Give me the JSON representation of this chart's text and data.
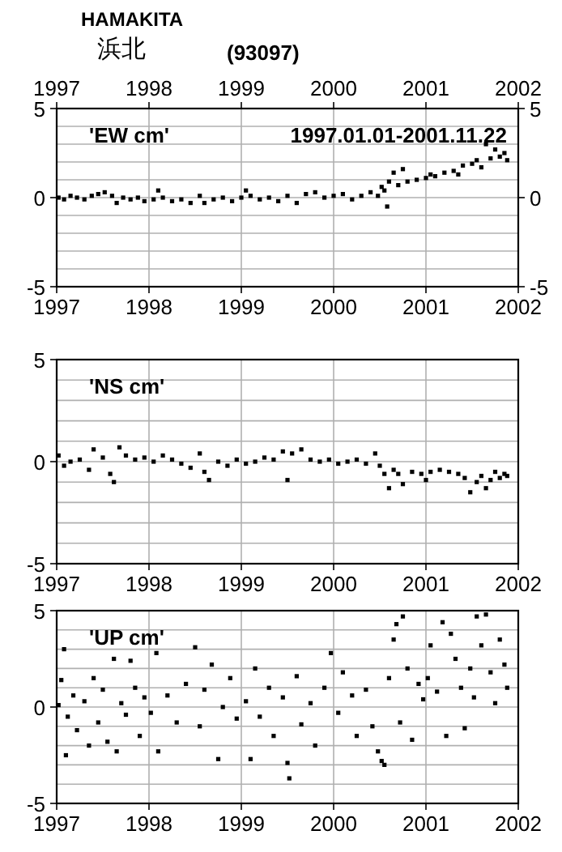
{
  "chart_data": [
    {
      "type": "scatter",
      "title": "HAMAKITA",
      "subtitle": "浜北",
      "annotations": [
        "(93097)",
        "'EW cm'",
        "1997.01.01-2001.11.22"
      ],
      "marker": "square",
      "grid": true,
      "xlim": [
        1997,
        2002
      ],
      "xticks": [
        1997,
        1998,
        1999,
        2000,
        2001,
        2002
      ],
      "x2lim": [
        1997,
        2002
      ],
      "x2ticks": [
        1997,
        1998,
        1999,
        2000,
        2001,
        2002
      ],
      "ylim": [
        -5,
        5
      ],
      "yticks": [
        -5,
        {
          "value": -4,
          "label": null
        },
        {
          "value": -3,
          "label": null
        },
        {
          "value": -2,
          "label": null
        },
        {
          "value": -1,
          "label": null
        },
        0,
        {
          "value": 1,
          "label": null
        },
        {
          "value": 2,
          "label": null
        },
        {
          "value": 3,
          "label": null
        },
        {
          "value": 4,
          "label": null
        },
        5
      ],
      "y2lim": [
        -5,
        5
      ],
      "y2ticks": [
        -5,
        0,
        5
      ],
      "series": [
        {
          "color": "#000000",
          "x": [
            1997.02,
            1997.08,
            1997.15,
            1997.22,
            1997.3,
            1997.38,
            1997.45,
            1997.52,
            1997.6,
            1997.65,
            1997.72,
            1997.8,
            1997.88,
            1997.95,
            1998.05,
            1998.1,
            1998.15,
            1998.25,
            1998.35,
            1998.45,
            1998.55,
            1998.6,
            1998.7,
            1998.8,
            1998.9,
            1999.0,
            1999.05,
            1999.1,
            1999.2,
            1999.3,
            1999.4,
            1999.5,
            1999.6,
            1999.7,
            1999.8,
            1999.9,
            2000.0,
            2000.1,
            2000.2,
            2000.3,
            2000.4,
            2000.48,
            2000.52,
            2000.55,
            2000.58,
            2000.6,
            2000.65,
            2000.7,
            2000.75,
            2000.8,
            2000.9,
            2001.0,
            2001.05,
            2001.1,
            2001.2,
            2001.3,
            2001.35,
            2001.4,
            2001.5,
            2001.55,
            2001.6,
            2001.65,
            2001.7,
            2001.75,
            2001.8,
            2001.85,
            2001.88
          ],
          "values": [
            0.0,
            -0.1,
            0.1,
            0.0,
            -0.1,
            0.1,
            0.2,
            0.3,
            0.1,
            -0.3,
            0.0,
            -0.1,
            0.0,
            -0.2,
            -0.1,
            0.4,
            0.0,
            -0.2,
            -0.1,
            -0.3,
            0.1,
            -0.3,
            -0.1,
            0.0,
            -0.2,
            0.0,
            0.4,
            0.1,
            -0.1,
            0.0,
            -0.2,
            0.1,
            -0.3,
            0.2,
            0.3,
            0.0,
            0.1,
            0.2,
            -0.1,
            0.1,
            0.3,
            0.1,
            0.6,
            0.4,
            -0.5,
            0.9,
            1.4,
            0.7,
            1.6,
            0.9,
            1.0,
            1.1,
            1.3,
            1.2,
            1.4,
            1.5,
            1.3,
            1.8,
            1.9,
            2.1,
            1.7,
            3.0,
            2.2,
            2.7,
            2.3,
            2.5,
            2.1
          ]
        }
      ]
    },
    {
      "type": "scatter",
      "annotations": [
        "'NS cm'"
      ],
      "marker": "square",
      "grid": true,
      "xlim": [
        1997,
        2002
      ],
      "xticks": [
        1997,
        1998,
        1999,
        2000,
        2001,
        2002
      ],
      "ylim": [
        -5,
        5
      ],
      "yticks": [
        -5,
        {
          "value": -4,
          "label": null
        },
        {
          "value": -3,
          "label": null
        },
        {
          "value": -2,
          "label": null
        },
        {
          "value": -1,
          "label": null
        },
        0,
        {
          "value": 1,
          "label": null
        },
        {
          "value": 2,
          "label": null
        },
        {
          "value": 3,
          "label": null
        },
        {
          "value": 4,
          "label": null
        },
        5
      ],
      "series": [
        {
          "color": "#000000",
          "x": [
            1997.02,
            1997.08,
            1997.15,
            1997.25,
            1997.35,
            1997.4,
            1997.5,
            1997.58,
            1997.62,
            1997.68,
            1997.75,
            1997.85,
            1997.95,
            1998.05,
            1998.15,
            1998.25,
            1998.35,
            1998.45,
            1998.55,
            1998.6,
            1998.65,
            1998.75,
            1998.85,
            1998.95,
            1999.05,
            1999.15,
            1999.25,
            1999.35,
            1999.45,
            1999.5,
            1999.55,
            1999.65,
            1999.75,
            1999.85,
            1999.95,
            2000.05,
            2000.15,
            2000.25,
            2000.35,
            2000.45,
            2000.5,
            2000.55,
            2000.6,
            2000.65,
            2000.7,
            2000.75,
            2000.85,
            2000.95,
            2001.0,
            2001.05,
            2001.15,
            2001.25,
            2001.35,
            2001.42,
            2001.48,
            2001.55,
            2001.6,
            2001.65,
            2001.7,
            2001.75,
            2001.8,
            2001.85,
            2001.88
          ],
          "values": [
            0.3,
            -0.2,
            0.0,
            0.1,
            -0.4,
            0.6,
            0.2,
            -0.6,
            -1.0,
            0.7,
            0.3,
            0.1,
            0.2,
            0.0,
            0.3,
            0.1,
            -0.1,
            -0.3,
            0.4,
            -0.5,
            -0.9,
            0.0,
            -0.2,
            0.1,
            -0.1,
            0.0,
            0.2,
            0.1,
            0.5,
            -0.9,
            0.4,
            0.6,
            0.1,
            0.0,
            0.1,
            -0.1,
            0.0,
            0.1,
            -0.1,
            0.4,
            -0.2,
            -0.6,
            -1.3,
            -0.4,
            -0.6,
            -1.1,
            -0.5,
            -0.6,
            -0.9,
            -0.5,
            -0.4,
            -0.5,
            -0.6,
            -0.8,
            -1.5,
            -1.0,
            -0.7,
            -1.3,
            -0.9,
            -0.5,
            -0.8,
            -0.6,
            -0.7
          ]
        }
      ]
    },
    {
      "type": "scatter",
      "annotations": [
        "'UP cm'"
      ],
      "marker": "square",
      "grid": true,
      "xlim": [
        1997,
        2002
      ],
      "xticks": [
        1997,
        1998,
        1999,
        2000,
        2001,
        2002
      ],
      "ylim": [
        -5,
        5
      ],
      "yticks": [
        -5,
        {
          "value": -4,
          "label": null
        },
        {
          "value": -3,
          "label": null
        },
        {
          "value": -2,
          "label": null
        },
        {
          "value": -1,
          "label": null
        },
        0,
        {
          "value": 1,
          "label": null
        },
        {
          "value": 2,
          "label": null
        },
        {
          "value": 3,
          "label": null
        },
        {
          "value": 4,
          "label": null
        },
        5
      ],
      "series": [
        {
          "color": "#000000",
          "x": [
            1997.02,
            1997.05,
            1997.08,
            1997.1,
            1997.12,
            1997.18,
            1997.22,
            1997.3,
            1997.35,
            1997.4,
            1997.45,
            1997.5,
            1997.55,
            1997.62,
            1997.65,
            1997.7,
            1997.75,
            1997.8,
            1997.85,
            1997.9,
            1997.95,
            1998.02,
            1998.08,
            1998.1,
            1998.2,
            1998.3,
            1998.4,
            1998.5,
            1998.55,
            1998.6,
            1998.68,
            1998.75,
            1998.8,
            1998.88,
            1998.95,
            1999.05,
            1999.1,
            1999.15,
            1999.2,
            1999.3,
            1999.35,
            1999.45,
            1999.5,
            1999.52,
            1999.6,
            1999.65,
            1999.75,
            1999.8,
            1999.9,
            1999.97,
            2000.05,
            2000.1,
            2000.2,
            2000.25,
            2000.35,
            2000.42,
            2000.48,
            2000.52,
            2000.55,
            2000.6,
            2000.65,
            2000.68,
            2000.72,
            2000.75,
            2000.8,
            2000.85,
            2000.92,
            2000.97,
            2001.02,
            2001.05,
            2001.12,
            2001.18,
            2001.22,
            2001.27,
            2001.32,
            2001.38,
            2001.42,
            2001.48,
            2001.52,
            2001.55,
            2001.6,
            2001.65,
            2001.7,
            2001.75,
            2001.8,
            2001.85,
            2001.88
          ],
          "values": [
            0.1,
            1.4,
            3.0,
            -2.5,
            -0.5,
            0.6,
            -1.2,
            0.3,
            -2.0,
            1.5,
            -0.8,
            0.9,
            -1.8,
            2.5,
            -2.3,
            0.2,
            -0.4,
            2.4,
            1.0,
            -1.5,
            0.5,
            -0.3,
            2.8,
            -2.3,
            0.6,
            -0.8,
            1.2,
            3.1,
            -1.0,
            0.9,
            2.2,
            -2.7,
            0.0,
            1.5,
            -0.6,
            0.3,
            -2.7,
            2.0,
            -0.5,
            1.0,
            -1.5,
            0.5,
            -2.9,
            -3.7,
            1.6,
            -0.9,
            0.2,
            -2.0,
            1.0,
            2.8,
            -0.3,
            1.8,
            0.6,
            -1.5,
            0.9,
            -1.0,
            -2.3,
            -2.8,
            -3.0,
            1.5,
            3.5,
            4.3,
            -0.8,
            4.7,
            2.0,
            -1.7,
            1.2,
            0.4,
            1.5,
            3.2,
            0.8,
            4.4,
            -1.5,
            3.8,
            2.5,
            1.0,
            -1.1,
            2.0,
            0.5,
            4.7,
            3.2,
            4.8,
            1.8,
            0.2,
            3.5,
            2.2,
            1.0
          ]
        }
      ]
    }
  ]
}
